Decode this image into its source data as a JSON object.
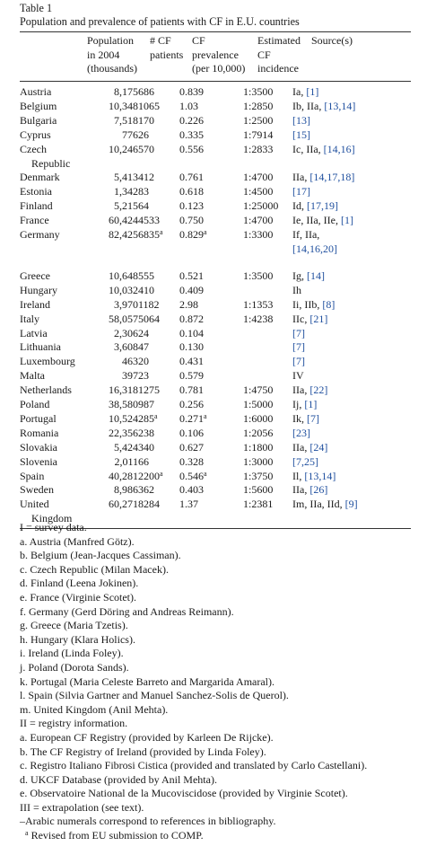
{
  "table_label": "Table 1",
  "caption": "Population and prevalence of patients with CF in E.U. countries",
  "headers": {
    "population": [
      "Population",
      "in 2004",
      "(thousands)"
    ],
    "cf_patients": [
      "# CF",
      "patients"
    ],
    "cf_prevalence": [
      "CF",
      "prevalence",
      "(per 10,000)"
    ],
    "incidence": [
      "Estimated",
      "CF",
      "incidence"
    ],
    "sources": [
      "Source(s)"
    ]
  },
  "rows": [
    {
      "country": "Austria",
      "country_cont": "",
      "population": "8,175",
      "patients": "686",
      "patients_sup": "",
      "prevalence": "0.839",
      "prevalence_sup": "",
      "incidence": "1:3500",
      "source_text": "Ia,",
      "source_refs": "[1]",
      "source_cont": ""
    },
    {
      "country": "Belgium",
      "country_cont": "",
      "population": "10,348",
      "patients": "1065",
      "patients_sup": "",
      "prevalence": "1.03",
      "prevalence_sup": "",
      "incidence": "1:2850",
      "source_text": "Ib, IIa,",
      "source_refs": "[13,14]",
      "source_cont": ""
    },
    {
      "country": "Bulgaria",
      "country_cont": "",
      "population": "7,518",
      "patients": "170",
      "patients_sup": "",
      "prevalence": "0.226",
      "prevalence_sup": "",
      "incidence": "1:2500",
      "source_text": "",
      "source_refs": "[13]",
      "source_cont": ""
    },
    {
      "country": "Cyprus",
      "country_cont": "",
      "population": "776",
      "patients": "26",
      "patients_sup": "",
      "prevalence": "0.335",
      "prevalence_sup": "",
      "incidence": "1:7914",
      "source_text": "",
      "source_refs": "[15]",
      "source_cont": ""
    },
    {
      "country": "Czech",
      "country_cont": "Republic",
      "population": "10,246",
      "patients": "570",
      "patients_sup": "",
      "prevalence": "0.556",
      "prevalence_sup": "",
      "incidence": "1:2833",
      "source_text": "Ic, IIa,",
      "source_refs": "[14,16]",
      "source_cont": ""
    },
    {
      "country": "Denmark",
      "country_cont": "",
      "population": "5,413",
      "patients": "412",
      "patients_sup": "",
      "prevalence": "0.761",
      "prevalence_sup": "",
      "incidence": "1:4700",
      "source_text": "IIa,",
      "source_refs": "[14,17,18]",
      "source_cont": ""
    },
    {
      "country": "Estonia",
      "country_cont": "",
      "population": "1,342",
      "patients": "83",
      "patients_sup": "",
      "prevalence": "0.618",
      "prevalence_sup": "",
      "incidence": "1:4500",
      "source_text": "",
      "source_refs": "[17]",
      "source_cont": ""
    },
    {
      "country": "Finland",
      "country_cont": "",
      "population": "5,215",
      "patients": "64",
      "patients_sup": "",
      "prevalence": "0.123",
      "prevalence_sup": "",
      "incidence": "1:25000",
      "source_text": "Id,",
      "source_refs": "[17,19]",
      "source_cont": ""
    },
    {
      "country": "France",
      "country_cont": "",
      "population": "60,424",
      "patients": "4533",
      "patients_sup": "",
      "prevalence": "0.750",
      "prevalence_sup": "",
      "incidence": "1:4700",
      "source_text": "Ie, IIa, IIe,",
      "source_refs": "[1]",
      "source_cont": ""
    },
    {
      "country": "Germany",
      "country_cont": "",
      "population": "82,425",
      "patients": "6835",
      "patients_sup": "a",
      "prevalence": "0.829",
      "prevalence_sup": "a",
      "incidence": "1:3300",
      "source_text": "If, IIa,",
      "source_refs": "",
      "source_cont": "[14,16,20]"
    },
    {
      "country": "Greece",
      "country_cont": "",
      "population": "10,648",
      "patients": "555",
      "patients_sup": "",
      "prevalence": "0.521",
      "prevalence_sup": "",
      "incidence": "1:3500",
      "source_text": "Ig,",
      "source_refs": "[14]",
      "source_cont": ""
    },
    {
      "country": "Hungary",
      "country_cont": "",
      "population": "10,032",
      "patients": "410",
      "patients_sup": "",
      "prevalence": "0.409",
      "prevalence_sup": "",
      "incidence": "",
      "source_text": "Ih",
      "source_refs": "",
      "source_cont": ""
    },
    {
      "country": "Ireland",
      "country_cont": "",
      "population": "3,970",
      "patients": "1182",
      "patients_sup": "",
      "prevalence": "2.98",
      "prevalence_sup": "",
      "incidence": "1:1353",
      "source_text": "Ii, IIb,",
      "source_refs": "[8]",
      "source_cont": ""
    },
    {
      "country": "Italy",
      "country_cont": "",
      "population": "58,057",
      "patients": "5064",
      "patients_sup": "",
      "prevalence": "0.872",
      "prevalence_sup": "",
      "incidence": "1:4238",
      "source_text": "IIc,",
      "source_refs": "[21]",
      "source_cont": ""
    },
    {
      "country": "Latvia",
      "country_cont": "",
      "population": "2,306",
      "patients": "24",
      "patients_sup": "",
      "prevalence": "0.104",
      "prevalence_sup": "",
      "incidence": "",
      "source_text": "",
      "source_refs": "[7]",
      "source_cont": ""
    },
    {
      "country": "Lithuania",
      "country_cont": "",
      "population": "3,608",
      "patients": "47",
      "patients_sup": "",
      "prevalence": "0.130",
      "prevalence_sup": "",
      "incidence": "",
      "source_text": "",
      "source_refs": "[7]",
      "source_cont": ""
    },
    {
      "country": "Luxembourg",
      "country_cont": "",
      "population": "463",
      "patients": "20",
      "patients_sup": "",
      "prevalence": "0.431",
      "prevalence_sup": "",
      "incidence": "",
      "source_text": "",
      "source_refs": "[7]",
      "source_cont": ""
    },
    {
      "country": "Malta",
      "country_cont": "",
      "population": "397",
      "patients": "23",
      "patients_sup": "",
      "prevalence": "0.579",
      "prevalence_sup": "",
      "incidence": "",
      "source_text": "IV",
      "source_refs": "",
      "source_cont": ""
    },
    {
      "country": "Netherlands",
      "country_cont": "",
      "population": "16,318",
      "patients": "1275",
      "patients_sup": "",
      "prevalence": "0.781",
      "prevalence_sup": "",
      "incidence": "1:4750",
      "source_text": "IIa,",
      "source_refs": "[22]",
      "source_cont": ""
    },
    {
      "country": "Poland",
      "country_cont": "",
      "population": "38,580",
      "patients": "987",
      "patients_sup": "",
      "prevalence": "0.256",
      "prevalence_sup": "",
      "incidence": "1:5000",
      "source_text": "Ij,",
      "source_refs": "[1]",
      "source_cont": ""
    },
    {
      "country": "Portugal",
      "country_cont": "",
      "population": "10,524",
      "patients": "285",
      "patients_sup": "a",
      "prevalence": "0.271",
      "prevalence_sup": "a",
      "incidence": "1:6000",
      "source_text": "Ik,",
      "source_refs": "[7]",
      "source_cont": ""
    },
    {
      "country": "Romania",
      "country_cont": "",
      "population": "22,356",
      "patients": "238",
      "patients_sup": "",
      "prevalence": "0.106",
      "prevalence_sup": "",
      "incidence": "1:2056",
      "source_text": "",
      "source_refs": "[23]",
      "source_cont": ""
    },
    {
      "country": "Slovakia",
      "country_cont": "",
      "population": "5,424",
      "patients": "340",
      "patients_sup": "",
      "prevalence": "0.627",
      "prevalence_sup": "",
      "incidence": "1:1800",
      "source_text": "IIa,",
      "source_refs": "[24]",
      "source_cont": ""
    },
    {
      "country": "Slovenia",
      "country_cont": "",
      "population": "2,011",
      "patients": "66",
      "patients_sup": "",
      "prevalence": "0.328",
      "prevalence_sup": "",
      "incidence": "1:3000",
      "source_text": "",
      "source_refs": "[7,25]",
      "source_cont": ""
    },
    {
      "country": "Spain",
      "country_cont": "",
      "population": "40,281",
      "patients": "2200",
      "patients_sup": "a",
      "prevalence": "0.546",
      "prevalence_sup": "a",
      "incidence": "1:3750",
      "source_text": "Il,",
      "source_refs": "[13,14]",
      "source_cont": ""
    },
    {
      "country": "Sweden",
      "country_cont": "",
      "population": "8,986",
      "patients": "362",
      "patients_sup": "",
      "prevalence": "0.403",
      "prevalence_sup": "",
      "incidence": "1:5600",
      "source_text": "IIa,",
      "source_refs": "[26]",
      "source_cont": ""
    },
    {
      "country": "United",
      "country_cont": "Kingdom",
      "population": "60,271",
      "patients": "8284",
      "patients_sup": "",
      "prevalence": "1.37",
      "prevalence_sup": "",
      "incidence": "1:2381",
      "source_text": "Im, IIa, IId,",
      "source_refs": "[9]",
      "source_cont": ""
    }
  ],
  "notes": [
    "I = survey data.",
    "a. Austria (Manfred Götz).",
    "b. Belgium (Jean-Jacques Cassiman).",
    "c. Czech Republic (Milan Macek).",
    "d. Finland (Leena Jokinen).",
    "e. France (Virginie Scotet).",
    "f. Germany (Gerd Döring and Andreas Reimann).",
    "g. Greece (Maria Tzetis).",
    "h. Hungary (Klara Holics).",
    "i. Ireland (Linda Foley).",
    "j. Poland (Dorota Sands).",
    "k. Portugal (Maria Celeste Barreto and Margarida Amaral).",
    "l. Spain (Silvia Gartner and Manuel Sanchez-Solis de Querol).",
    "m. United Kingdom (Anil Mehta).",
    "II = registry information.",
    "a. European CF Registry (provided by Karleen De Rijcke).",
    "b. The CF Registry of Ireland (provided by Linda Foley).",
    "c. Registro Italiano Fibrosi Cistica (provided and translated by Carlo Castellani).",
    "d. UKCF Database (provided by Anil Mehta).",
    "e. Observatoire National de la Mucoviscidose (provided by Virginie Scotet).",
    "III = extrapolation (see text).",
    "–Arabic numerals correspond to references in bibliography."
  ],
  "footnote_marker": "a",
  "footnote_text": "Revised from EU submission to COMP."
}
